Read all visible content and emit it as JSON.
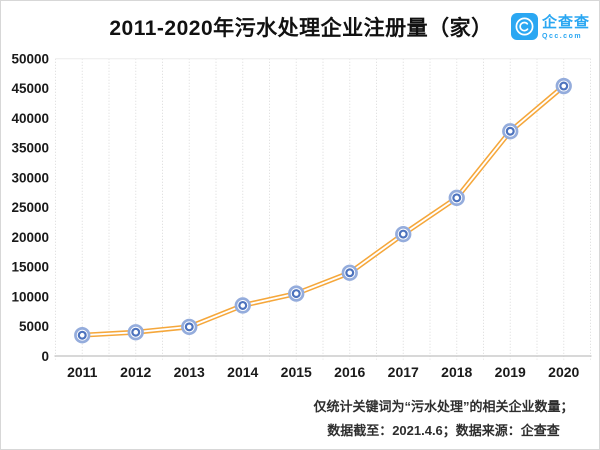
{
  "header": {
    "title": "2011-2020年污水处理企业注册量（家）",
    "logo": {
      "name": "企查查",
      "domain": "Qcc.com",
      "brand_color": "#2BA7F2"
    }
  },
  "chart_data": {
    "type": "line",
    "title": "2011-2020年污水处理企业注册量（家）",
    "categories": [
      "2011",
      "2012",
      "2013",
      "2014",
      "2015",
      "2016",
      "2017",
      "2018",
      "2019",
      "2020"
    ],
    "series": [
      {
        "name": "污水处理企业注册量",
        "values": [
          3500,
          4000,
          4900,
          8500,
          10500,
          14000,
          20500,
          26600,
          37800,
          45400
        ]
      }
    ],
    "xlabel": "",
    "ylabel": "",
    "ylim": [
      0,
      50000
    ],
    "yticks": [
      0,
      5000,
      10000,
      15000,
      20000,
      25000,
      30000,
      35000,
      40000,
      45000,
      50000
    ],
    "grid": "vertical-dotted-half-category",
    "legend": "none",
    "line_color": "#F5A73B",
    "line_style": "double-stroke",
    "marker_outer_color": "#94ACDC",
    "marker_inner_color": "#4D73BE",
    "gridline_color": "#d9d9d9",
    "axis_line_color": "#c0c0c0",
    "tick_label_color": "#1a1a1a"
  },
  "footer": {
    "note_line1": "仅统计关键词为“污水处理”的相关企业数量；",
    "note_line2": "数据截至：2021.4.6；数据来源：企查查"
  }
}
